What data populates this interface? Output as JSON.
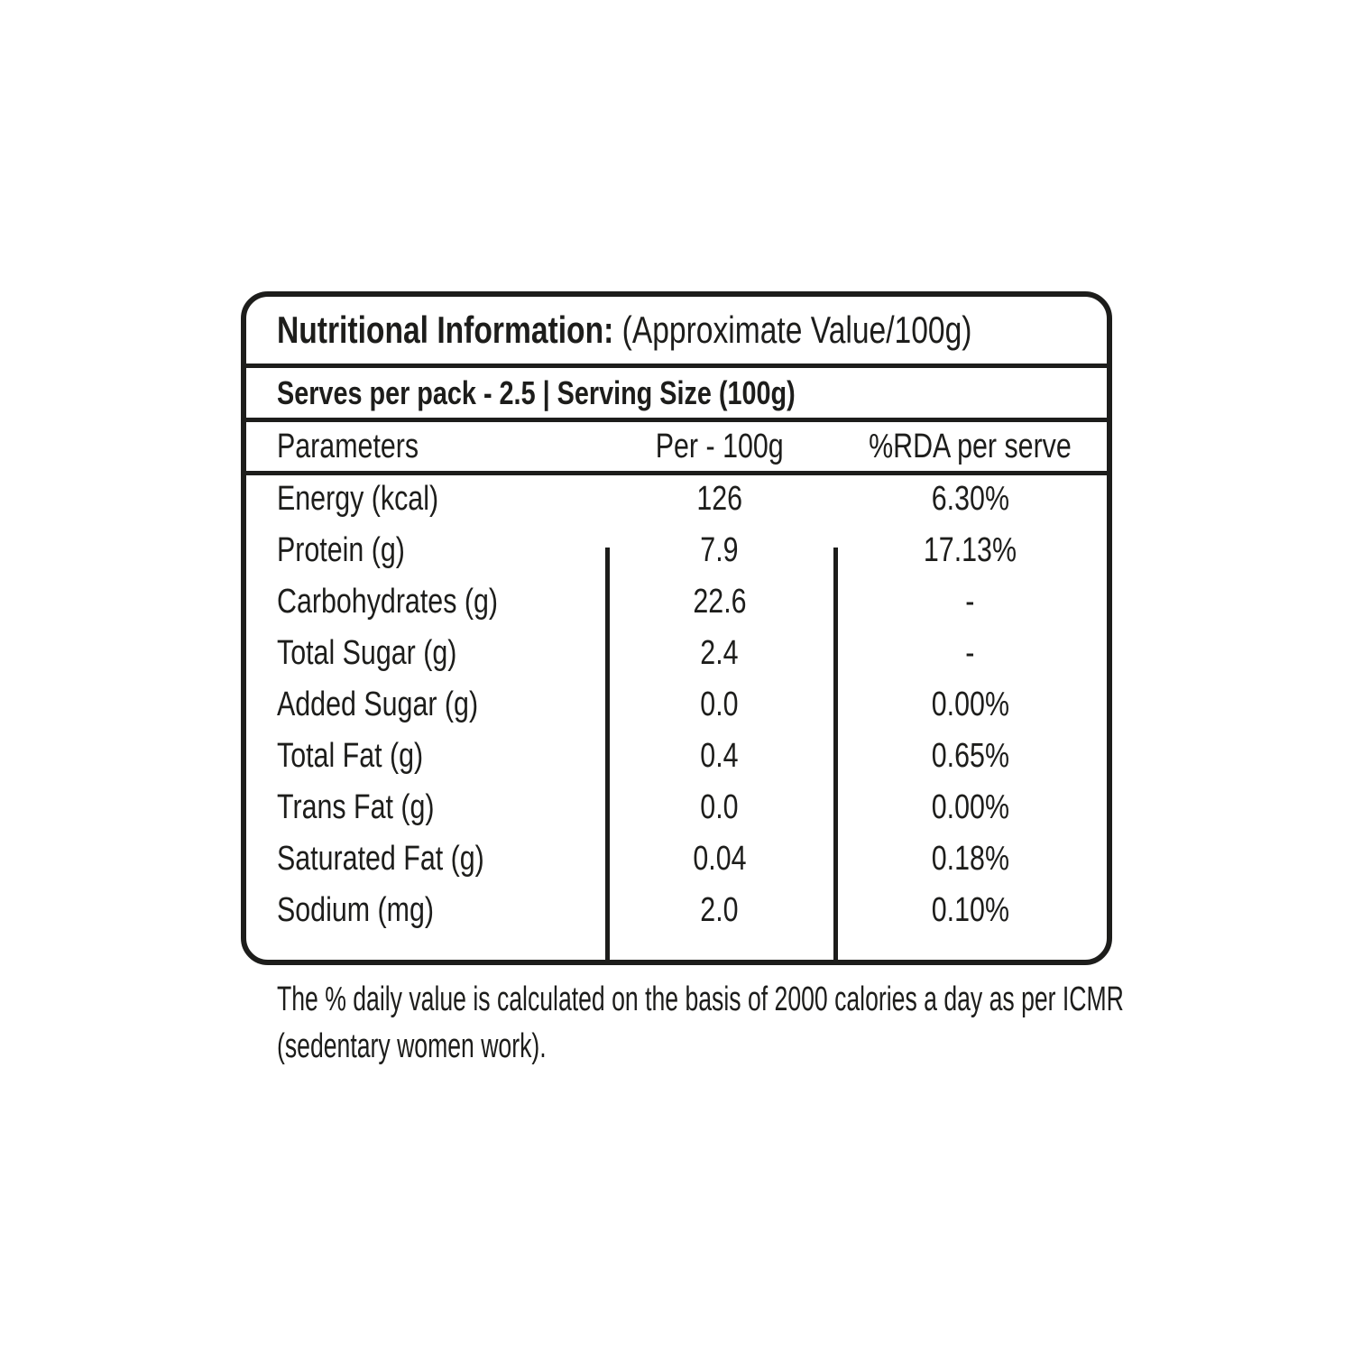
{
  "colors": {
    "ink": "#1d1d1b",
    "background": "#ffffff"
  },
  "label": {
    "title_bold": "Nutritional Information:",
    "title_normal": "(Approximate Value/100g)",
    "serves_line": "Serves per pack - 2.5 | Serving Size (100g)",
    "headers": [
      "Parameters",
      "Per - 100g",
      "%RDA per serve"
    ],
    "rows": [
      {
        "label": "Energy (kcal)",
        "per100": "126",
        "rda": "6.30%"
      },
      {
        "label": "Protein (g)",
        "per100": "7.9",
        "rda": "17.13%"
      },
      {
        "label": "Carbohydrates (g)",
        "per100": "22.6",
        "rda": "-"
      },
      {
        "label": "Total Sugar (g)",
        "per100": "2.4",
        "rda": "-"
      },
      {
        "label": "Added Sugar (g)",
        "per100": "0.0",
        "rda": "0.00%"
      },
      {
        "label": "Total Fat (g)",
        "per100": "0.4",
        "rda": "0.65%"
      },
      {
        "label": "Trans Fat (g)",
        "per100": "0.0",
        "rda": "0.00%"
      },
      {
        "label": "Saturated Fat (g)",
        "per100": "0.04",
        "rda": "0.18%"
      },
      {
        "label": "Sodium (mg)",
        "per100": "2.0",
        "rda": "0.10%"
      }
    ],
    "footnote": "The % daily value is calculated on the basis of 2000 calories a day as per ICMR (sedentary women work)."
  }
}
